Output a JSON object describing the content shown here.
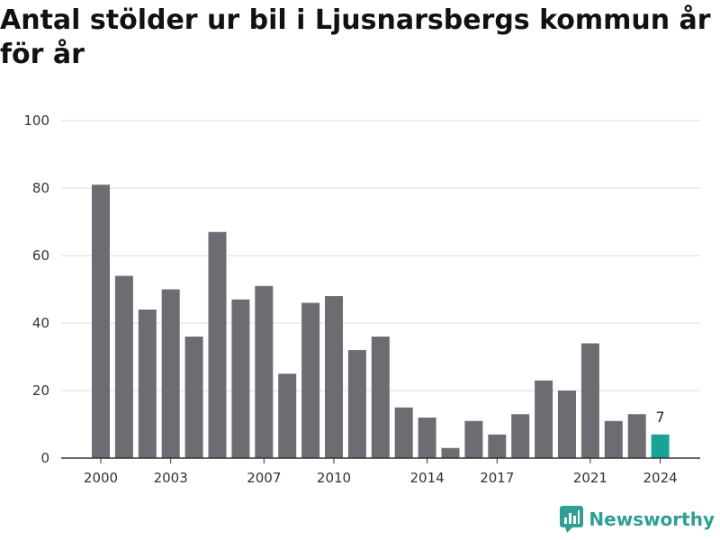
{
  "chart_data": {
    "type": "bar",
    "title": "Antal stölder ur bil i Ljusnarsbergs kommun år för år",
    "categories": [
      "2000",
      "2001",
      "2002",
      "2003",
      "2004",
      "2005",
      "2006",
      "2007",
      "2008",
      "2009",
      "2010",
      "2011",
      "2012",
      "2013",
      "2014",
      "2015",
      "2016",
      "2017",
      "2018",
      "2019",
      "2020",
      "2021",
      "2022",
      "2023",
      "2024"
    ],
    "values": [
      81,
      54,
      44,
      50,
      36,
      67,
      47,
      51,
      25,
      46,
      48,
      32,
      36,
      15,
      12,
      3,
      11,
      7,
      13,
      23,
      20,
      34,
      11,
      13,
      7
    ],
    "x_tick_labels": [
      "2000",
      "2003",
      "2007",
      "2010",
      "2014",
      "2017",
      "2021",
      "2024"
    ],
    "y_ticks": [
      0,
      20,
      40,
      60,
      80,
      100
    ],
    "ylim": [
      0,
      100
    ],
    "grid": true,
    "bar_color": "#6d6c72",
    "highlight_color": "#17a398",
    "highlight_category": "2024",
    "highlight_label": "7"
  },
  "logo": {
    "text": "Newsworthy",
    "color": "#2f9e94"
  }
}
